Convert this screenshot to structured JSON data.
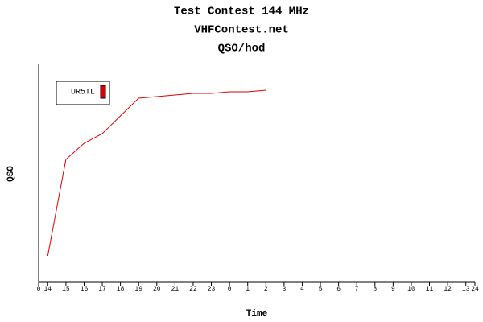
{
  "chart_data": {
    "type": "line",
    "title": "Test Contest 144 MHz",
    "subtitle": "VHFContest.net",
    "chart_label": "QSO/hod",
    "xlabel": "Time",
    "ylabel": "QSO",
    "x": [
      0.5,
      1.5,
      2.5,
      3.5,
      4.5,
      5.5,
      6.5,
      7.5,
      8.5,
      9.5,
      10.5,
      11.5,
      12.5
    ],
    "series": [
      {
        "name": "UR5TL",
        "color": "#dd0000",
        "values": [
          16,
          76,
          86,
          92,
          103,
          114,
          115,
          116,
          117,
          117,
          118,
          118,
          119
        ]
      }
    ],
    "xlim": [
      0,
      24
    ],
    "ylim": [
      0,
      135
    ],
    "xticks": [
      {
        "value": 0,
        "label": "0"
      },
      {
        "value": 0.5,
        "label": "14"
      },
      {
        "value": 1.5,
        "label": "15"
      },
      {
        "value": 2.5,
        "label": "16"
      },
      {
        "value": 3.5,
        "label": "17"
      },
      {
        "value": 4.5,
        "label": "18"
      },
      {
        "value": 5.5,
        "label": "19"
      },
      {
        "value": 6.5,
        "label": "20"
      },
      {
        "value": 7.5,
        "label": "21"
      },
      {
        "value": 8.5,
        "label": "22"
      },
      {
        "value": 9.5,
        "label": "23"
      },
      {
        "value": 10.5,
        "label": "0"
      },
      {
        "value": 11.5,
        "label": "1"
      },
      {
        "value": 12.5,
        "label": "2"
      },
      {
        "value": 13.5,
        "label": "3"
      },
      {
        "value": 14.5,
        "label": "4"
      },
      {
        "value": 15.5,
        "label": "5"
      },
      {
        "value": 16.5,
        "label": "6"
      },
      {
        "value": 17.5,
        "label": "7"
      },
      {
        "value": 18.5,
        "label": "8"
      },
      {
        "value": 19.5,
        "label": "9"
      },
      {
        "value": 20.5,
        "label": "10"
      },
      {
        "value": 21.5,
        "label": "11"
      },
      {
        "value": 22.5,
        "label": "12"
      },
      {
        "value": 23.5,
        "label": "13"
      },
      {
        "value": 24,
        "label": "24"
      }
    ]
  }
}
